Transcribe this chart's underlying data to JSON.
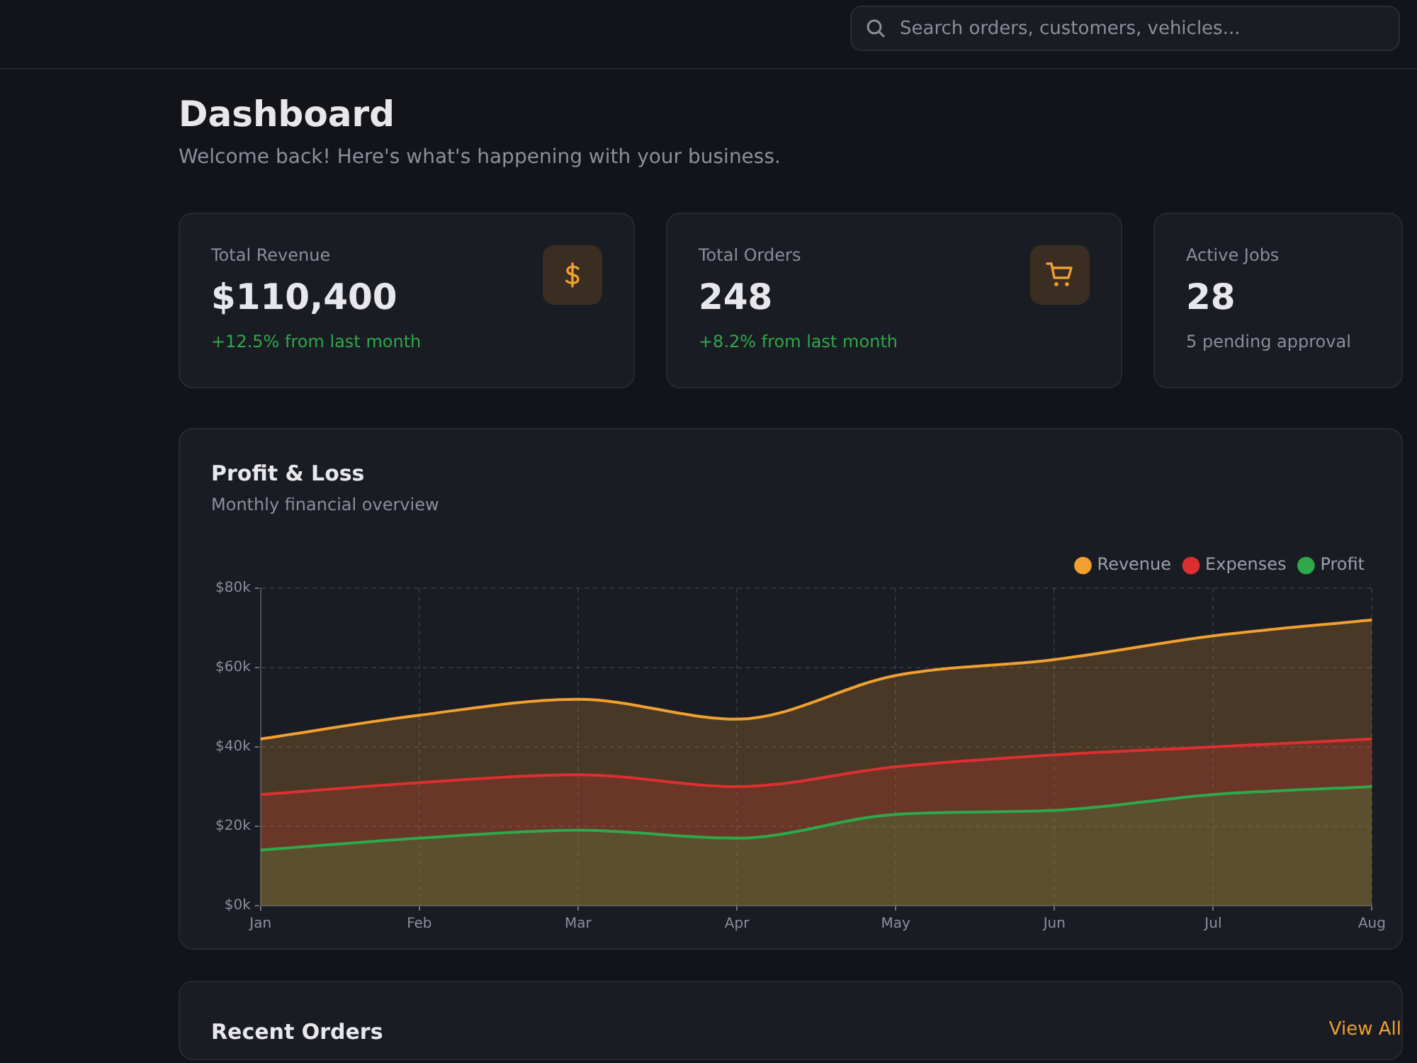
{
  "chart_data": [
    {
      "type": "other",
      "title": "Dashboard",
      "subtitle": "Welcome back! Here's what's happening with your business.",
      "annotations": [
        "Search orders, customers, vehicles..."
      ]
    },
    {
      "type": "other",
      "title": "Total Revenue",
      "annotations": [
        "$110,400",
        "+12.5% from last month"
      ]
    },
    {
      "type": "other",
      "title": "Total Orders",
      "annotations": [
        "248",
        "+8.2% from last month"
      ]
    },
    {
      "type": "other",
      "title": "Active Jobs",
      "annotations": [
        "28",
        "5 pending approval"
      ]
    },
    {
      "type": "area",
      "title": "Profit & Loss",
      "subtitle": "Monthly financial overview",
      "categories": [
        "Jan",
        "Feb",
        "Mar",
        "Apr",
        "May",
        "Jun",
        "Jul",
        "Aug"
      ],
      "series": [
        {
          "name": "Revenue",
          "color": "#f0a030",
          "values": [
            42000,
            48000,
            52000,
            47000,
            58000,
            62000,
            68000,
            72000
          ]
        },
        {
          "name": "Expenses",
          "color": "#dc3030",
          "values": [
            28000,
            31000,
            33000,
            30000,
            35000,
            38000,
            40000,
            42000
          ]
        },
        {
          "name": "Profit",
          "color": "#2ea84a",
          "values": [
            14000,
            17000,
            19000,
            17000,
            23000,
            24000,
            28000,
            30000
          ]
        }
      ],
      "ylim": [
        0,
        80000
      ],
      "yticks": [
        {
          "value": 0,
          "label": "$0k"
        },
        {
          "value": 20000,
          "label": "$20k"
        },
        {
          "value": 40000,
          "label": "$40k"
        },
        {
          "value": 60000,
          "label": "$60k"
        },
        {
          "value": 80000,
          "label": "$80k"
        }
      ],
      "grid": true,
      "legend": "top right",
      "marker": "none",
      "line_style": "solid"
    },
    {
      "type": "other",
      "title": "Recent Orders",
      "annotations": [
        "View All"
      ]
    }
  ]
}
